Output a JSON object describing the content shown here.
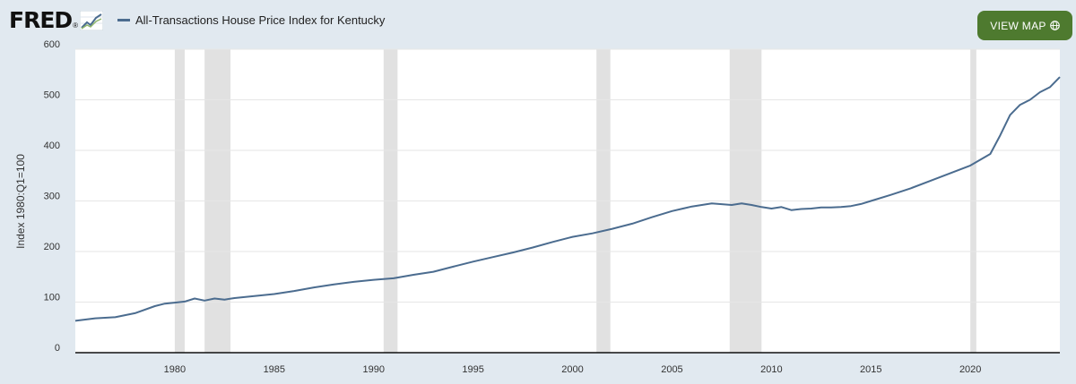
{
  "header": {
    "logo_text": "FRED",
    "logo_dot": "®",
    "title": "All-Transactions House Price Index for Kentucky",
    "view_map_label": "VIEW MAP"
  },
  "colors": {
    "background": "#e1e9f0",
    "plot_bg": "#ffffff",
    "series": "#4b6c8f",
    "recession": "#e1e1e1",
    "button": "#4e7a2f"
  },
  "icons": {
    "logo_graph": "fred-graph-icon",
    "globe": "globe-icon"
  },
  "chart_data": {
    "type": "line",
    "title": "All-Transactions House Price Index for Kentucky",
    "ylabel": "Index 1980:Q1=100",
    "xlabel": "",
    "xlim": [
      1975.0,
      2024.5
    ],
    "ylim": [
      0,
      600
    ],
    "x_ticks": [
      1980,
      1985,
      1990,
      1995,
      2000,
      2005,
      2010,
      2015,
      2020
    ],
    "y_ticks": [
      0,
      100,
      200,
      300,
      400,
      500,
      600
    ],
    "grid": true,
    "recessions": [
      [
        1980.0,
        1980.5
      ],
      [
        1981.5,
        1982.8
      ],
      [
        1990.5,
        1991.2
      ],
      [
        2001.2,
        2001.9
      ],
      [
        2007.9,
        2009.5
      ],
      [
        2020.0,
        2020.3
      ]
    ],
    "series": [
      {
        "name": "All-Transactions House Price Index for Kentucky",
        "x": [
          1975.0,
          1976.0,
          1977.0,
          1978.0,
          1979.0,
          1979.5,
          1980.0,
          1980.5,
          1981.0,
          1981.5,
          1982.0,
          1982.5,
          1983.0,
          1984.0,
          1985.0,
          1986.0,
          1987.0,
          1988.0,
          1989.0,
          1990.0,
          1991.0,
          1992.0,
          1993.0,
          1994.0,
          1995.0,
          1996.0,
          1997.0,
          1998.0,
          1999.0,
          2000.0,
          2001.0,
          2002.0,
          2003.0,
          2004.0,
          2005.0,
          2006.0,
          2007.0,
          2008.0,
          2008.5,
          2009.0,
          2009.5,
          2010.0,
          2010.5,
          2011.0,
          2011.5,
          2012.0,
          2012.5,
          2013.0,
          2013.5,
          2014.0,
          2014.5,
          2015.0,
          2016.0,
          2017.0,
          2018.0,
          2019.0,
          2020.0,
          2021.0,
          2021.5,
          2022.0,
          2022.5,
          2023.0,
          2023.5,
          2024.0,
          2024.5
        ],
        "y": [
          63,
          68,
          70,
          78,
          92,
          97,
          99,
          101,
          107,
          103,
          107,
          105,
          108,
          112,
          116,
          122,
          129,
          135,
          140,
          144,
          147,
          154,
          160,
          170,
          180,
          189,
          198,
          208,
          219,
          229,
          236,
          245,
          255,
          268,
          280,
          289,
          295,
          292,
          295,
          292,
          288,
          285,
          288,
          282,
          284,
          285,
          287,
          287,
          288,
          290,
          294,
          300,
          312,
          325,
          340,
          355,
          370,
          393,
          430,
          470,
          490,
          500,
          515,
          525,
          545
        ]
      }
    ]
  }
}
